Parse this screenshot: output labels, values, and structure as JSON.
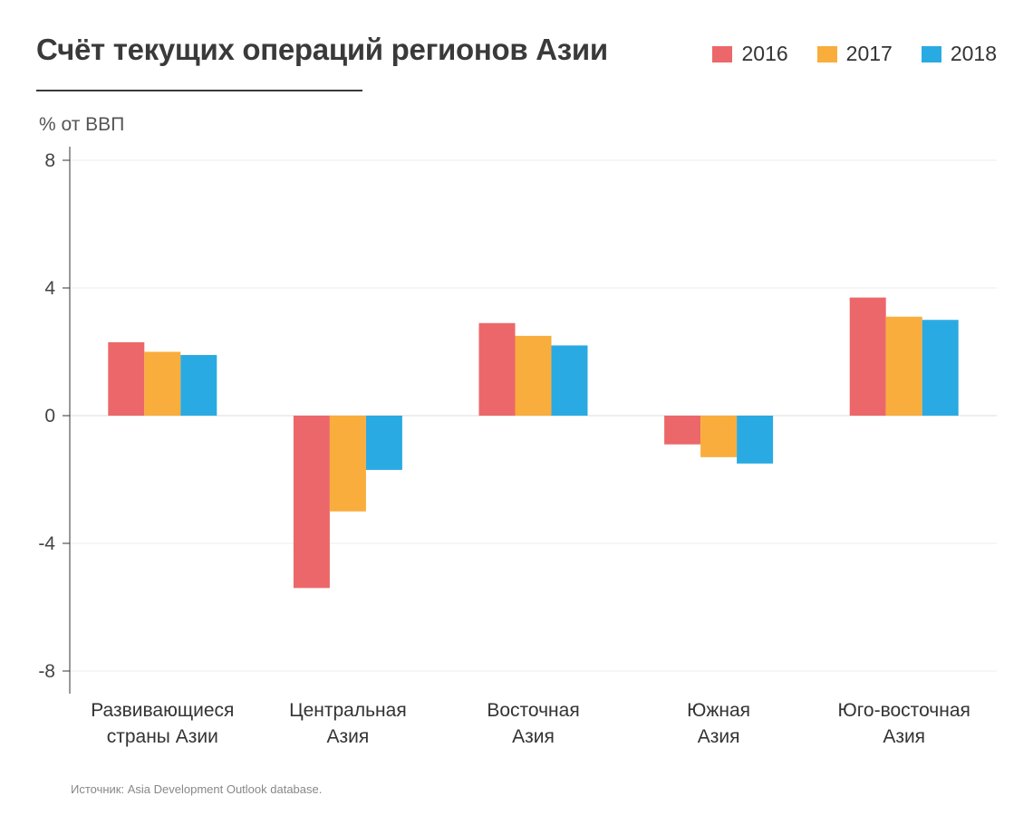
{
  "header": {
    "title": "Счёт текущих операций регионов Азии"
  },
  "chart_data": {
    "type": "bar",
    "title": "Счёт текущих операций регионов Азии",
    "ylabel": "% от ВВП",
    "xlabel": "",
    "ylim": [
      -8,
      8
    ],
    "yticks": [
      8,
      4,
      0,
      -4,
      -8
    ],
    "ytick_labels": [
      "8",
      "4",
      "0",
      "-4",
      "-8"
    ],
    "grid": true,
    "legend_position": "top-right",
    "categories": [
      [
        "Развивающиеся",
        "страны Азии"
      ],
      [
        "Центральная",
        "Азия"
      ],
      [
        "Восточная",
        "Азия"
      ],
      [
        "Южная",
        "Азия"
      ],
      [
        "Юго-восточная",
        "Азия"
      ]
    ],
    "series": [
      {
        "name": "2016",
        "color": "#EC6769",
        "values": [
          2.3,
          -5.4,
          2.9,
          -0.9,
          3.7
        ]
      },
      {
        "name": "2017",
        "color": "#F9AD3C",
        "values": [
          2.0,
          -3.0,
          2.5,
          -1.3,
          3.1
        ]
      },
      {
        "name": "2018",
        "color": "#2AAAE2",
        "values": [
          1.9,
          -1.7,
          2.2,
          -1.5,
          3.0
        ]
      }
    ]
  },
  "source": "Источник: Asia Development Outlook database."
}
